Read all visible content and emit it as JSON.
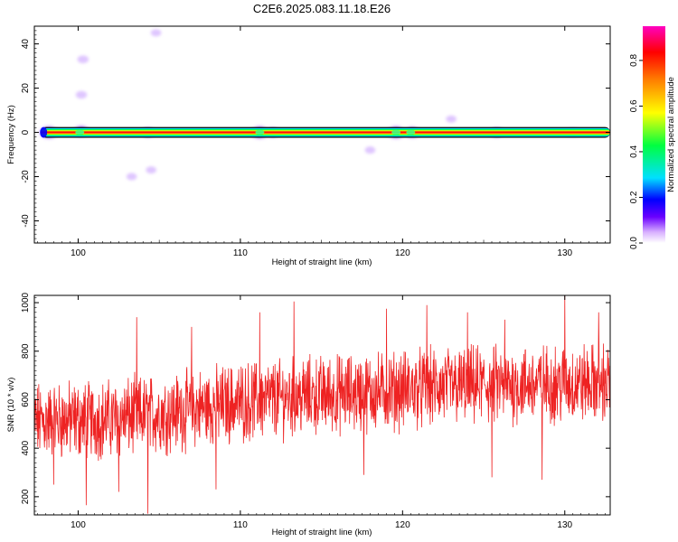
{
  "title": "C2E6.2025.083.11.18.E26",
  "chart_data": [
    {
      "type": "heatmap",
      "xlabel": "Height of straight line (km)",
      "ylabel": "Frequency (Hz)",
      "xlim": [
        97.3,
        132.8
      ],
      "ylim": [
        -50,
        48
      ],
      "xticks": [
        100,
        110,
        120,
        130
      ],
      "yticks": [
        40,
        20,
        0,
        -20,
        -40
      ],
      "ytick_labels": [
        "40",
        "20",
        "0",
        "-20",
        "-40"
      ],
      "band_frequency": 0,
      "band_halfwidth_hz": 2,
      "blobs": [
        {
          "x": 98.2,
          "y": 0,
          "amplitude": 0.3
        },
        {
          "x": 100.2,
          "y": 0.5,
          "amplitude": 0.25
        },
        {
          "x": 104.3,
          "y": 0,
          "amplitude": 0.2
        },
        {
          "x": 111.2,
          "y": 0,
          "amplitude": 0.3
        },
        {
          "x": 112.0,
          "y": 0,
          "amplitude": 0.2
        },
        {
          "x": 119.6,
          "y": 0,
          "amplitude": 0.3
        },
        {
          "x": 120.6,
          "y": 0,
          "amplitude": 0.25
        },
        {
          "x": 125.8,
          "y": 0,
          "amplitude": 0.2
        },
        {
          "x": 130.5,
          "y": 0,
          "amplitude": 0.15
        },
        {
          "x": 100.3,
          "y": 33,
          "amplitude": 0.1
        },
        {
          "x": 100.2,
          "y": 17,
          "amplitude": 0.1
        },
        {
          "x": 104.8,
          "y": 45,
          "amplitude": 0.08
        },
        {
          "x": 103.3,
          "y": -20,
          "amplitude": 0.08
        },
        {
          "x": 104.5,
          "y": -17,
          "amplitude": 0.08
        },
        {
          "x": 118.0,
          "y": -8,
          "amplitude": 0.08
        },
        {
          "x": 123.0,
          "y": 6,
          "amplitude": 0.08
        }
      ],
      "colorbar": {
        "label": "Normalized spectral amplitude",
        "range": [
          0,
          0.95
        ],
        "ticks": [
          0.0,
          0.2,
          0.4,
          0.6,
          0.8
        ],
        "tick_labels": [
          "0.0",
          "0.2",
          "0.4",
          "0.6",
          "0.8"
        ],
        "colormap": [
          "#ffffff",
          "#6a00ff",
          "#0000ff",
          "#00e0ff",
          "#00ff40",
          "#ffff00",
          "#ff8000",
          "#ff0000",
          "#ff00c0"
        ]
      }
    },
    {
      "type": "line",
      "xlabel": "Height of straight line (km)",
      "ylabel": "SNR (10 * v/v)",
      "xlim": [
        97.3,
        132.8
      ],
      "ylim": [
        125,
        1030
      ],
      "xticks": [
        100,
        110,
        120,
        130
      ],
      "yticks": [
        200,
        400,
        600,
        800,
        1000
      ],
      "series": [
        {
          "color": "#ee2222",
          "samples": 1700,
          "trend": [
            [
              97.3,
              510
            ],
            [
              102,
              520
            ],
            [
              106,
              550
            ],
            [
              110,
              590
            ],
            [
              114,
              615
            ],
            [
              118,
              630
            ],
            [
              122,
              650
            ],
            [
              126,
              660
            ],
            [
              130,
              665
            ],
            [
              132.8,
              670
            ]
          ],
          "peaks": [
            [
              103.6,
              940
            ],
            [
              107.0,
              900
            ],
            [
              111.2,
              960
            ],
            [
              113.3,
              1005
            ],
            [
              119.0,
              975
            ],
            [
              121.5,
              990
            ],
            [
              124.0,
              960
            ],
            [
              126.3,
              930
            ],
            [
              130.0,
              1030
            ],
            [
              132.1,
              960
            ]
          ],
          "troughs": [
            [
              98.5,
              250
            ],
            [
              100.5,
              165
            ],
            [
              102.5,
              220
            ],
            [
              104.3,
              130
            ],
            [
              108.5,
              230
            ],
            [
              117.6,
              290
            ],
            [
              125.5,
              280
            ],
            [
              128.6,
              270
            ]
          ]
        }
      ]
    }
  ]
}
